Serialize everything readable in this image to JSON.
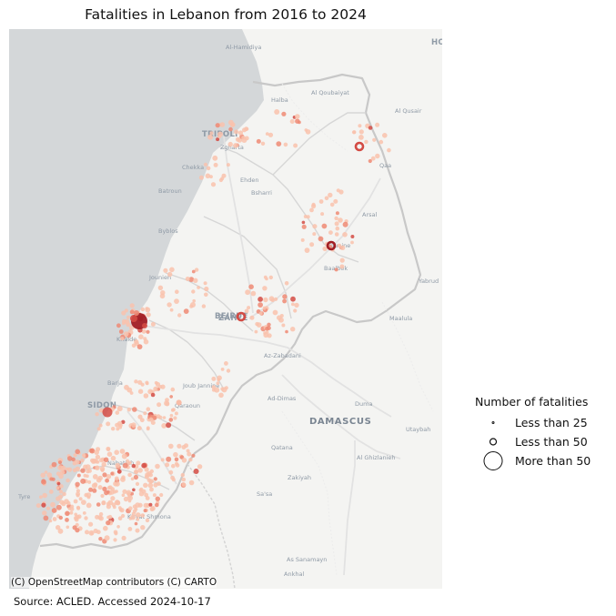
{
  "title": "Fatalities in Lebanon from 2016 to 2024",
  "map": {
    "attribution": "(C) OpenStreetMap contributors (C) CARTO",
    "source_note": "Source: ACLED. Accessed 2024-10-17",
    "colors": {
      "sea": "#d4d7d9",
      "land": "#f4f4f2",
      "border": "#c8c8c8",
      "road": "#e1e1e1",
      "label": "#8f9aa6",
      "point_light": "#f9c2ad",
      "point_mid": "#ee8a74",
      "point_dark": "#d34b44",
      "point_darkest": "#a11e24"
    },
    "place_labels": [
      {
        "text": "TRIPOLI",
        "kind": "city"
      },
      {
        "text": "BEIRUT",
        "kind": "city"
      },
      {
        "text": "ZAHLE",
        "kind": "city"
      },
      {
        "text": "SIDON",
        "kind": "city"
      },
      {
        "text": "DAMASCUS",
        "kind": "capital"
      },
      {
        "text": "Halba",
        "kind": "town"
      },
      {
        "text": "Al Qoubaiyat",
        "kind": "town"
      },
      {
        "text": "Al Qusair",
        "kind": "town"
      },
      {
        "text": "Zgharta",
        "kind": "town"
      },
      {
        "text": "Chekka",
        "kind": "town"
      },
      {
        "text": "Batroun",
        "kind": "town"
      },
      {
        "text": "Ehden",
        "kind": "town"
      },
      {
        "text": "Bsharri",
        "kind": "town"
      },
      {
        "text": "Qaa",
        "kind": "town"
      },
      {
        "text": "Arsal",
        "kind": "town"
      },
      {
        "text": "Byblos",
        "kind": "town"
      },
      {
        "text": "Younine",
        "kind": "town"
      },
      {
        "text": "Baalbek",
        "kind": "town"
      },
      {
        "text": "Jounieh",
        "kind": "town"
      },
      {
        "text": "Yabrud",
        "kind": "town"
      },
      {
        "text": "Maalula",
        "kind": "town"
      },
      {
        "text": "Khalde",
        "kind": "town"
      },
      {
        "text": "Az-Zabadani",
        "kind": "town"
      },
      {
        "text": "Barja",
        "kind": "town"
      },
      {
        "text": "Joub Jannine",
        "kind": "town"
      },
      {
        "text": "Qaraoun",
        "kind": "town"
      },
      {
        "text": "Ad-Dimas",
        "kind": "town"
      },
      {
        "text": "Duma",
        "kind": "town"
      },
      {
        "text": "Utaybah",
        "kind": "town"
      },
      {
        "text": "Nabatieh",
        "kind": "town"
      },
      {
        "text": "Qatana",
        "kind": "town"
      },
      {
        "text": "Al Ghizlanieh",
        "kind": "town"
      },
      {
        "text": "Zakiyah",
        "kind": "town"
      },
      {
        "text": "Tyre",
        "kind": "town"
      },
      {
        "text": "Kiryat Shmona",
        "kind": "town"
      },
      {
        "text": "Sa'sa",
        "kind": "town"
      },
      {
        "text": "As Sanamayn",
        "kind": "town"
      },
      {
        "text": "Ankhal",
        "kind": "town"
      },
      {
        "text": "Al-Hamidiya",
        "kind": "town"
      },
      {
        "text": "HO",
        "kind": "city"
      }
    ]
  },
  "legend": {
    "title": "Number of fatalities",
    "items": [
      {
        "label": "Less than 25",
        "size": "small"
      },
      {
        "label": "Less than 50",
        "size": "medium"
      },
      {
        "label": "More than 50",
        "size": "large"
      }
    ]
  },
  "chart_data": {
    "type": "scatter",
    "title": "Fatalities in Lebanon from 2016 to 2024",
    "legend_title": "Number of fatalities",
    "size_categories": [
      "Less than 25",
      "Less than 50",
      "More than 50"
    ],
    "source": "Source: ACLED. Accessed 2024-10-17"
  }
}
